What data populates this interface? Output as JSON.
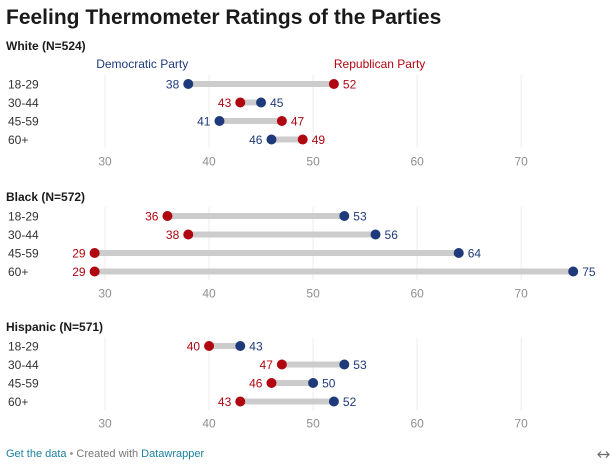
{
  "chart_data": {
    "type": "scatter",
    "title": "Feeling Thermometer Ratings of the Parties",
    "series": [
      {
        "name": "Democratic Party",
        "color": "#1f3a7a"
      },
      {
        "name": "Republican Party",
        "color": "#b00610"
      }
    ],
    "xlim": [
      25,
      77
    ],
    "xticks": [
      30,
      40,
      50,
      60,
      70
    ],
    "grid": true,
    "legend": "top",
    "panels": [
      {
        "title": "White (N=524)",
        "categories": [
          "18-29",
          "30-44",
          "45-59",
          "60+"
        ],
        "values": [
          [
            38,
            45,
            41,
            46
          ],
          [
            52,
            43,
            47,
            49
          ]
        ]
      },
      {
        "title": "Black (N=572)",
        "categories": [
          "18-29",
          "30-44",
          "45-59",
          "60+"
        ],
        "values": [
          [
            53,
            56,
            64,
            75
          ],
          [
            36,
            38,
            29,
            29
          ]
        ]
      },
      {
        "title": "Hispanic (N=571)",
        "categories": [
          "18-29",
          "30-44",
          "45-59",
          "60+"
        ],
        "values": [
          [
            43,
            53,
            50,
            52
          ],
          [
            40,
            47,
            46,
            43
          ]
        ]
      }
    ]
  },
  "footer": {
    "get_data": "Get the data",
    "separator": "•",
    "created_with": "Created with",
    "credit": "Datawrapper",
    "link_color": "#1d81a2",
    "resize_icon": "resize-icon"
  }
}
